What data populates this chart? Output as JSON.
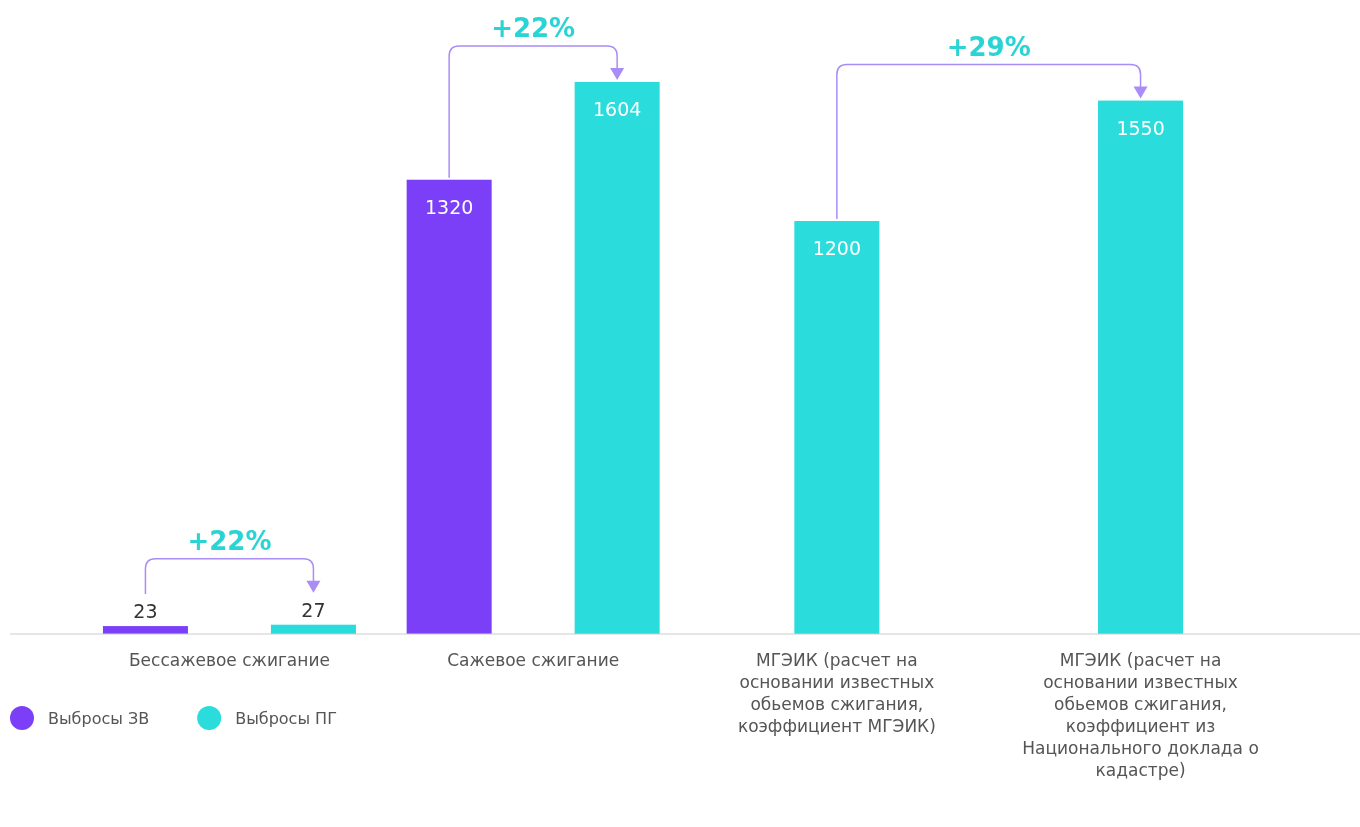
{
  "chart_data": {
    "type": "bar",
    "categories": [
      "Бессажевое сжигание",
      "Сажевое сжигание",
      "МГЭИК (расчет на основании известных обьемов сжигания, коэффициент МГЭИК)",
      "МГЭИК (расчет на основании известных обьемов сжигания, коэффициент из Национального доклада о кадастре)"
    ],
    "series": [
      {
        "name": "Выбросы ЗВ",
        "color": "#7b3ff7",
        "values": [
          23,
          1320,
          null,
          null
        ]
      },
      {
        "name": "Выбросы ПГ",
        "color": "#2adcdc",
        "values": [
          27,
          1604,
          1200,
          1550
        ]
      }
    ],
    "data_labels": true,
    "legend": "bottom left",
    "annotations": [
      "+22%",
      "+22%",
      "+29%"
    ]
  }
}
